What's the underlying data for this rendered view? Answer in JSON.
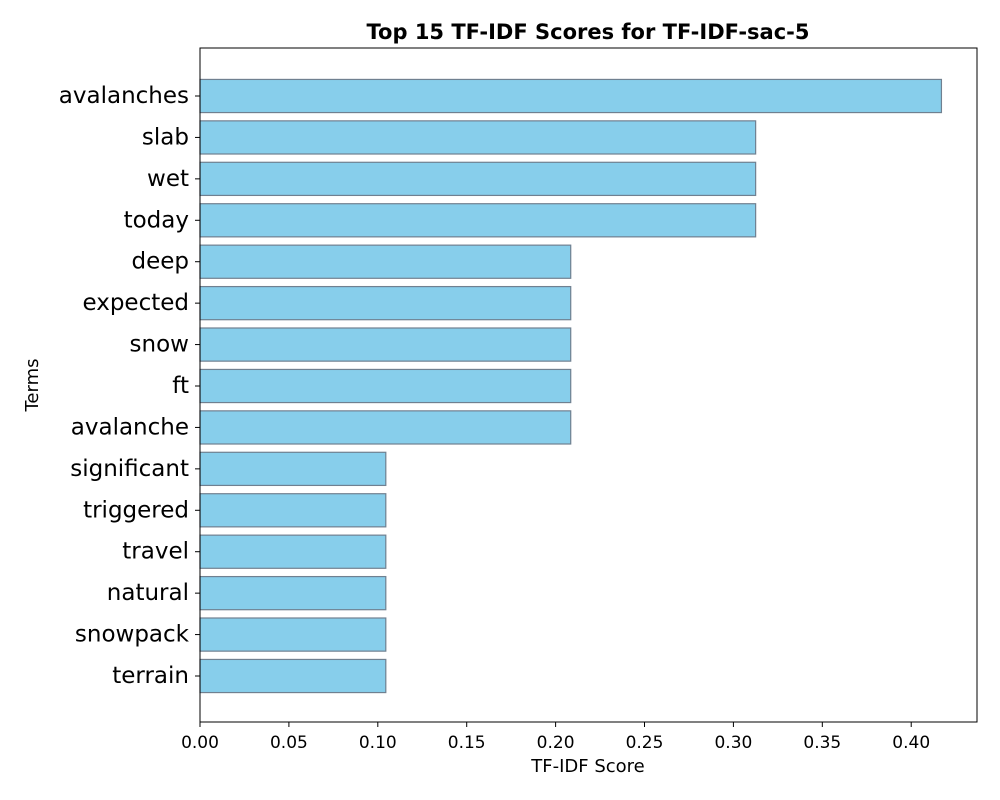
{
  "chart_data": {
    "type": "bar",
    "orientation": "horizontal",
    "title": "Top 15 TF-IDF Scores for TF-IDF-sac-5",
    "xlabel": "TF-IDF Score",
    "ylabel": "Terms",
    "xlim": [
      0.0,
      0.437
    ],
    "xticks": [
      0.0,
      0.05,
      0.1,
      0.15,
      0.2,
      0.25,
      0.3,
      0.35,
      0.4
    ],
    "xtick_labels": [
      "0.00",
      "0.05",
      "0.10",
      "0.15",
      "0.20",
      "0.25",
      "0.30",
      "0.35",
      "0.40"
    ],
    "grid": false,
    "categories": [
      "avalanches",
      "slab",
      "wet",
      "today",
      "deep",
      "expected",
      "snow",
      "ft",
      "avalanche",
      "significant",
      "triggered",
      "travel",
      "natural",
      "snowpack",
      "terrain"
    ],
    "values": [
      0.417,
      0.3125,
      0.3125,
      0.3125,
      0.2085,
      0.2085,
      0.2085,
      0.2085,
      0.2085,
      0.1045,
      0.1045,
      0.1045,
      0.1045,
      0.1045,
      0.1045
    ],
    "colors": {
      "bar_fill": "#87ceeb",
      "bar_edge": "#708090",
      "axis": "#000000"
    }
  }
}
